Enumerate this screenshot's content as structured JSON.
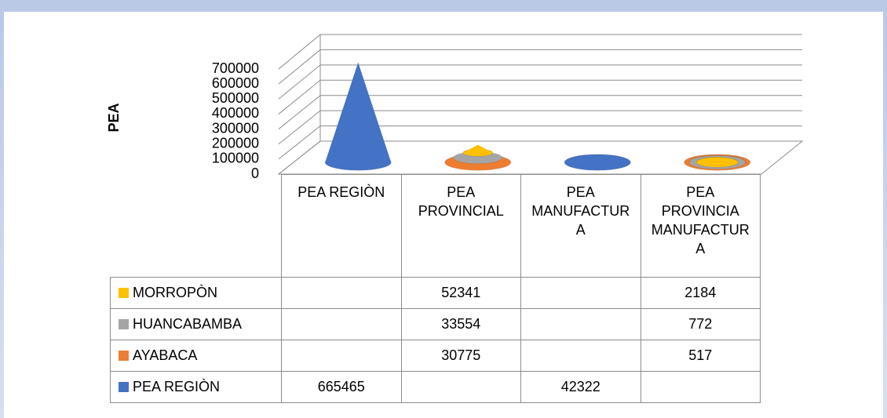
{
  "chart_data": {
    "type": "cone",
    "y_label": "PEA",
    "categories": [
      "PEA REGIÒN",
      "PEA PROVINCIAL",
      "PEA MANUFACTURA",
      "PEA PROVINCIA MANUFACTURA"
    ],
    "series": [
      {
        "name": "MORROPÒN",
        "color": "#ffc000",
        "values": [
          null,
          52341,
          null,
          2184
        ]
      },
      {
        "name": "HUANCABAMBA",
        "color": "#a5a5a5",
        "values": [
          null,
          33554,
          null,
          772
        ]
      },
      {
        "name": "AYABACA",
        "color": "#ed7d31",
        "values": [
          null,
          30775,
          null,
          517
        ]
      },
      {
        "name": "PEA REGIÒN",
        "color": "#4472c4",
        "values": [
          665465,
          null,
          42322,
          null
        ]
      }
    ],
    "ylim": [
      0,
      700000
    ],
    "yticks": [
      0,
      100000,
      200000,
      300000,
      400000,
      500000,
      600000,
      700000
    ],
    "grid": true
  }
}
